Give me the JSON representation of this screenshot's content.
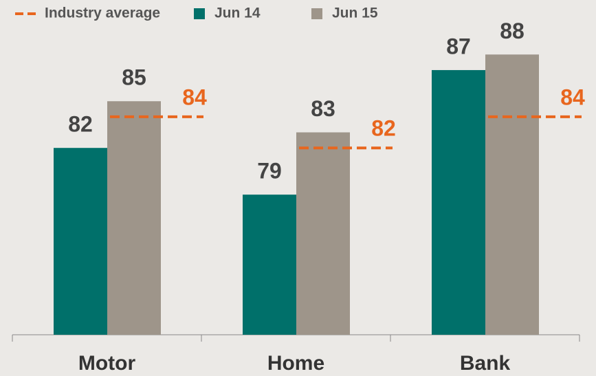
{
  "chart_data": {
    "type": "bar",
    "categories": [
      "Motor",
      "Home",
      "Bank"
    ],
    "series": [
      {
        "name": "Jun 14",
        "color": "#00706a",
        "values": [
          82,
          79,
          87
        ]
      },
      {
        "name": "Jun 15",
        "color": "#9e958a",
        "values": [
          85,
          83,
          88
        ]
      }
    ],
    "reference": {
      "name": "Industry average",
      "color": "#e8661e",
      "values": [
        84,
        82,
        84
      ]
    },
    "ylim": [
      70,
      90
    ]
  }
}
